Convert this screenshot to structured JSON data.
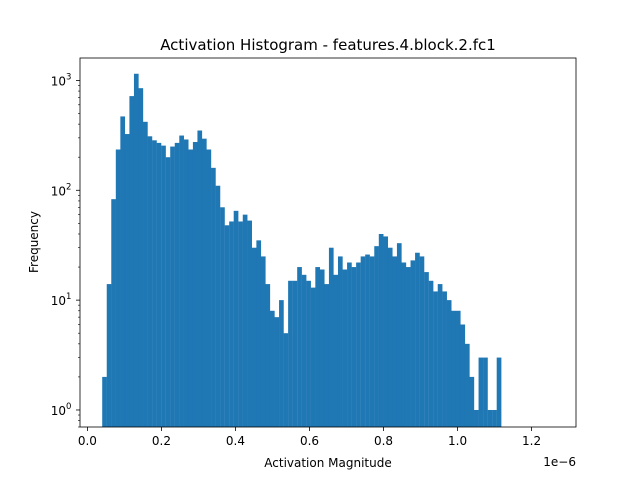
{
  "chart_data": {
    "type": "bar",
    "title": "Activation Histogram - features.4.block.2.fc1",
    "xlabel": "Activation Magnitude",
    "ylabel": "Frequency",
    "x_offset_label": "1e−6",
    "yscale": "log",
    "xlim": [
      -0.02,
      1.32
    ],
    "ylim": [
      0.7,
      1600
    ],
    "x_ticks": [
      0.0,
      0.2,
      0.4,
      0.6,
      0.8,
      1.0,
      1.2
    ],
    "x_tick_labels": [
      "0.0",
      "0.2",
      "0.4",
      "0.6",
      "0.8",
      "1.0",
      "1.2"
    ],
    "y_ticks": [
      1,
      10,
      100,
      1000
    ],
    "y_tick_labels": [
      "10",
      "10",
      "10",
      "10"
    ],
    "y_tick_exponents": [
      "0",
      "1",
      "2",
      "3"
    ],
    "bin_start": 0.04,
    "bin_width": 0.01225,
    "bar_color": "#1f77b4",
    "grid": false,
    "legend": "none",
    "values": [
      2,
      14,
      83,
      235,
      470,
      325,
      720,
      1150,
      850,
      420,
      310,
      285,
      270,
      255,
      200,
      250,
      270,
      315,
      290,
      235,
      275,
      350,
      295,
      235,
      160,
      110,
      70,
      48,
      52,
      65,
      52,
      60,
      53,
      30,
      35,
      25,
      14,
      8,
      7,
      10,
      5,
      15,
      15,
      20,
      17,
      15,
      13,
      20,
      19,
      14,
      30,
      17,
      25,
      19,
      22,
      20,
      22,
      25,
      26,
      25,
      31,
      40,
      38,
      30,
      25,
      33,
      22,
      20,
      23,
      27,
      25,
      18,
      15,
      12,
      14,
      12,
      10,
      8,
      8,
      6,
      4,
      2,
      1,
      3,
      3,
      1,
      1,
      3
    ]
  }
}
